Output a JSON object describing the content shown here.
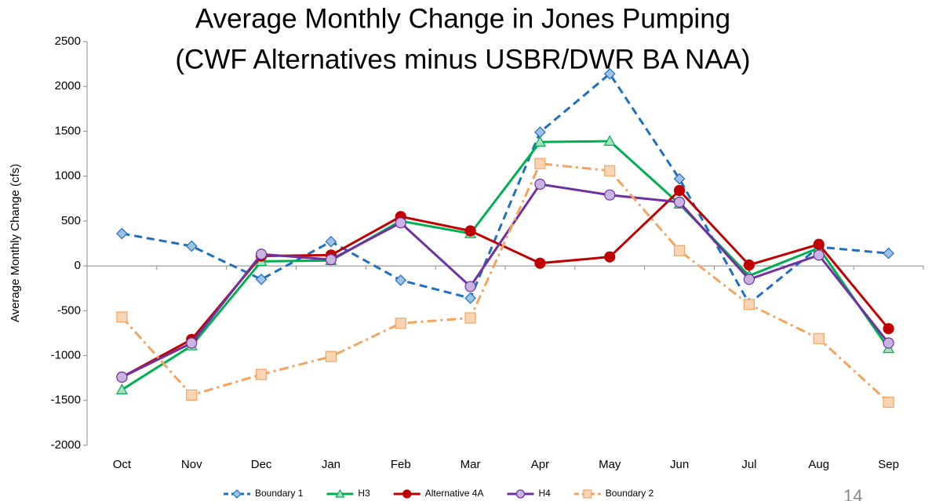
{
  "chart_data": {
    "type": "line",
    "title": "Average Monthly Change in Jones Pumping",
    "subtitle": "(CWF Alternatives minus USBR/DWR BA NAA)",
    "y_label": "Average Monthly Change (cfs)",
    "page_number": "14",
    "categories": [
      "Oct",
      "Nov",
      "Dec",
      "Jan",
      "Feb",
      "Mar",
      "Apr",
      "May",
      "Jun",
      "Jul",
      "Aug",
      "Sep"
    ],
    "ylim": [
      -2000,
      2500
    ],
    "yticks": [
      -2000,
      -1500,
      -1000,
      -500,
      0,
      500,
      1000,
      1500,
      2000,
      2500
    ],
    "legend": "bottom",
    "series": [
      {
        "name": "Boundary 1",
        "color": "#1f6fc0",
        "marker_fill": "#9dc3e6",
        "marker": "diamond",
        "dash": "dash",
        "values": [
          360,
          220,
          -150,
          270,
          -160,
          -360,
          1490,
          2140,
          970,
          -420,
          210,
          140
        ]
      },
      {
        "name": "H3",
        "color": "#00b050",
        "marker_fill": "#a9dfbf",
        "marker": "triangle",
        "dash": "solid",
        "values": [
          -1380,
          -890,
          50,
          60,
          500,
          360,
          1380,
          1390,
          690,
          -110,
          200,
          -920
        ]
      },
      {
        "name": "Alternative 4A",
        "color": "#c00000",
        "marker_fill": "#c00000",
        "marker": "circle",
        "dash": "solid",
        "values": [
          -1240,
          -820,
          110,
          120,
          550,
          390,
          30,
          100,
          840,
          10,
          240,
          -700
        ]
      },
      {
        "name": "H4",
        "color": "#7030a0",
        "marker_fill": "#c9b3e0",
        "marker": "circle",
        "dash": "solid",
        "values": [
          -1240,
          -860,
          130,
          70,
          480,
          -230,
          910,
          790,
          710,
          -150,
          120,
          -860
        ]
      },
      {
        "name": "Boundary 2",
        "color": "#f4a460",
        "marker_fill": "#fbd4b4",
        "marker": "square",
        "dash": "dashdot",
        "values": [
          -570,
          -1440,
          -1210,
          -1010,
          -640,
          -580,
          1140,
          1060,
          170,
          -430,
          -810,
          -1520
        ]
      }
    ]
  }
}
